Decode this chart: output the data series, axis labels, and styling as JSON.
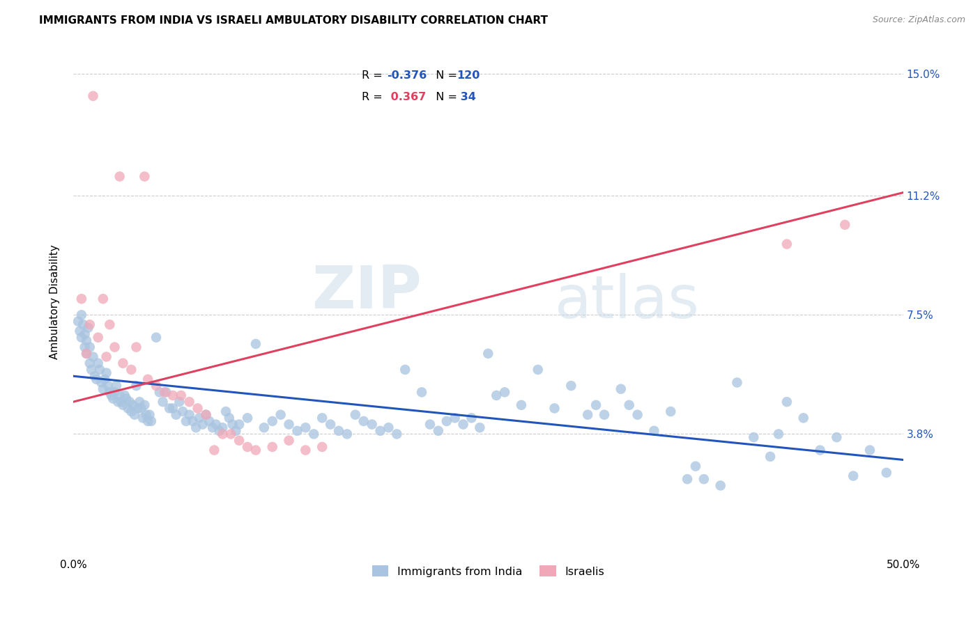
{
  "title": "IMMIGRANTS FROM INDIA VS ISRAELI AMBULATORY DISABILITY CORRELATION CHART",
  "source": "Source: ZipAtlas.com",
  "ylabel": "Ambulatory Disability",
  "xlim": [
    0.0,
    0.5
  ],
  "ylim": [
    0.0,
    0.158
  ],
  "yticks": [
    0.038,
    0.075,
    0.112,
    0.15
  ],
  "ytick_labels": [
    "3.8%",
    "7.5%",
    "11.2%",
    "15.0%"
  ],
  "xticks": [
    0.0,
    0.1,
    0.2,
    0.3,
    0.4,
    0.5
  ],
  "xtick_labels": [
    "0.0%",
    "",
    "",
    "",
    "",
    "50.0%"
  ],
  "legend_blue_r": "-0.376",
  "legend_blue_n": "120",
  "legend_pink_r": "0.367",
  "legend_pink_n": "34",
  "blue_color": "#a8c4e0",
  "pink_color": "#f0a8b8",
  "line_blue": "#2255bb",
  "line_pink": "#e04060",
  "blue_line_x": [
    0.0,
    0.5
  ],
  "blue_line_y": [
    0.056,
    0.03
  ],
  "pink_line_x": [
    0.0,
    0.5
  ],
  "pink_line_y": [
    0.048,
    0.113
  ],
  "watermark_zip": "ZIP",
  "watermark_atlas": "atlas",
  "blue_points": [
    [
      0.003,
      0.073
    ],
    [
      0.004,
      0.07
    ],
    [
      0.005,
      0.068
    ],
    [
      0.005,
      0.075
    ],
    [
      0.006,
      0.072
    ],
    [
      0.007,
      0.065
    ],
    [
      0.007,
      0.069
    ],
    [
      0.008,
      0.063
    ],
    [
      0.008,
      0.067
    ],
    [
      0.009,
      0.071
    ],
    [
      0.01,
      0.06
    ],
    [
      0.01,
      0.065
    ],
    [
      0.011,
      0.058
    ],
    [
      0.012,
      0.062
    ],
    [
      0.013,
      0.056
    ],
    [
      0.014,
      0.055
    ],
    [
      0.015,
      0.06
    ],
    [
      0.016,
      0.058
    ],
    [
      0.017,
      0.054
    ],
    [
      0.018,
      0.052
    ],
    [
      0.019,
      0.055
    ],
    [
      0.02,
      0.057
    ],
    [
      0.021,
      0.053
    ],
    [
      0.022,
      0.051
    ],
    [
      0.023,
      0.05
    ],
    [
      0.024,
      0.049
    ],
    [
      0.025,
      0.051
    ],
    [
      0.026,
      0.053
    ],
    [
      0.027,
      0.048
    ],
    [
      0.028,
      0.05
    ],
    [
      0.029,
      0.048
    ],
    [
      0.03,
      0.047
    ],
    [
      0.031,
      0.05
    ],
    [
      0.032,
      0.049
    ],
    [
      0.033,
      0.046
    ],
    [
      0.034,
      0.048
    ],
    [
      0.035,
      0.045
    ],
    [
      0.036,
      0.047
    ],
    [
      0.037,
      0.044
    ],
    [
      0.038,
      0.053
    ],
    [
      0.039,
      0.046
    ],
    [
      0.04,
      0.048
    ],
    [
      0.041,
      0.046
    ],
    [
      0.042,
      0.043
    ],
    [
      0.043,
      0.047
    ],
    [
      0.044,
      0.044
    ],
    [
      0.045,
      0.042
    ],
    [
      0.046,
      0.044
    ],
    [
      0.047,
      0.042
    ],
    [
      0.05,
      0.068
    ],
    [
      0.052,
      0.051
    ],
    [
      0.054,
      0.048
    ],
    [
      0.056,
      0.051
    ],
    [
      0.058,
      0.046
    ],
    [
      0.06,
      0.046
    ],
    [
      0.062,
      0.044
    ],
    [
      0.064,
      0.048
    ],
    [
      0.066,
      0.045
    ],
    [
      0.068,
      0.042
    ],
    [
      0.07,
      0.044
    ],
    [
      0.072,
      0.042
    ],
    [
      0.074,
      0.04
    ],
    [
      0.076,
      0.043
    ],
    [
      0.078,
      0.041
    ],
    [
      0.08,
      0.044
    ],
    [
      0.082,
      0.042
    ],
    [
      0.084,
      0.04
    ],
    [
      0.086,
      0.041
    ],
    [
      0.088,
      0.039
    ],
    [
      0.09,
      0.04
    ],
    [
      0.092,
      0.045
    ],
    [
      0.094,
      0.043
    ],
    [
      0.096,
      0.041
    ],
    [
      0.098,
      0.039
    ],
    [
      0.1,
      0.041
    ],
    [
      0.105,
      0.043
    ],
    [
      0.11,
      0.066
    ],
    [
      0.115,
      0.04
    ],
    [
      0.12,
      0.042
    ],
    [
      0.125,
      0.044
    ],
    [
      0.13,
      0.041
    ],
    [
      0.135,
      0.039
    ],
    [
      0.14,
      0.04
    ],
    [
      0.145,
      0.038
    ],
    [
      0.15,
      0.043
    ],
    [
      0.155,
      0.041
    ],
    [
      0.16,
      0.039
    ],
    [
      0.165,
      0.038
    ],
    [
      0.17,
      0.044
    ],
    [
      0.175,
      0.042
    ],
    [
      0.18,
      0.041
    ],
    [
      0.185,
      0.039
    ],
    [
      0.19,
      0.04
    ],
    [
      0.195,
      0.038
    ],
    [
      0.2,
      0.058
    ],
    [
      0.21,
      0.051
    ],
    [
      0.215,
      0.041
    ],
    [
      0.22,
      0.039
    ],
    [
      0.225,
      0.042
    ],
    [
      0.23,
      0.043
    ],
    [
      0.235,
      0.041
    ],
    [
      0.24,
      0.043
    ],
    [
      0.245,
      0.04
    ],
    [
      0.25,
      0.063
    ],
    [
      0.255,
      0.05
    ],
    [
      0.26,
      0.051
    ],
    [
      0.27,
      0.047
    ],
    [
      0.28,
      0.058
    ],
    [
      0.29,
      0.046
    ],
    [
      0.3,
      0.053
    ],
    [
      0.31,
      0.044
    ],
    [
      0.315,
      0.047
    ],
    [
      0.32,
      0.044
    ],
    [
      0.33,
      0.052
    ],
    [
      0.335,
      0.047
    ],
    [
      0.34,
      0.044
    ],
    [
      0.35,
      0.039
    ],
    [
      0.36,
      0.045
    ],
    [
      0.37,
      0.024
    ],
    [
      0.375,
      0.028
    ],
    [
      0.38,
      0.024
    ],
    [
      0.39,
      0.022
    ],
    [
      0.4,
      0.054
    ],
    [
      0.41,
      0.037
    ],
    [
      0.42,
      0.031
    ],
    [
      0.425,
      0.038
    ],
    [
      0.43,
      0.048
    ],
    [
      0.44,
      0.043
    ],
    [
      0.45,
      0.033
    ],
    [
      0.46,
      0.037
    ],
    [
      0.47,
      0.025
    ],
    [
      0.48,
      0.033
    ],
    [
      0.49,
      0.026
    ]
  ],
  "pink_points": [
    [
      0.012,
      0.143
    ],
    [
      0.028,
      0.118
    ],
    [
      0.043,
      0.118
    ],
    [
      0.005,
      0.08
    ],
    [
      0.018,
      0.08
    ],
    [
      0.01,
      0.072
    ],
    [
      0.022,
      0.072
    ],
    [
      0.015,
      0.068
    ],
    [
      0.025,
      0.065
    ],
    [
      0.008,
      0.063
    ],
    [
      0.02,
      0.062
    ],
    [
      0.03,
      0.06
    ],
    [
      0.035,
      0.058
    ],
    [
      0.038,
      0.065
    ],
    [
      0.045,
      0.055
    ],
    [
      0.05,
      0.053
    ],
    [
      0.055,
      0.051
    ],
    [
      0.06,
      0.05
    ],
    [
      0.065,
      0.05
    ],
    [
      0.07,
      0.048
    ],
    [
      0.075,
      0.046
    ],
    [
      0.08,
      0.044
    ],
    [
      0.085,
      0.033
    ],
    [
      0.09,
      0.038
    ],
    [
      0.095,
      0.038
    ],
    [
      0.1,
      0.036
    ],
    [
      0.105,
      0.034
    ],
    [
      0.11,
      0.033
    ],
    [
      0.12,
      0.034
    ],
    [
      0.13,
      0.036
    ],
    [
      0.14,
      0.033
    ],
    [
      0.15,
      0.034
    ],
    [
      0.43,
      0.097
    ],
    [
      0.465,
      0.103
    ]
  ]
}
